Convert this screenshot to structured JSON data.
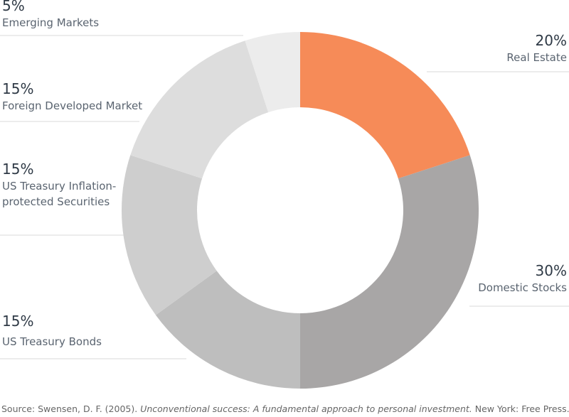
{
  "chart_data": {
    "type": "donut",
    "categories": [
      "Real Estate",
      "Domestic Stocks",
      "US Treasury Bonds",
      "US Treasury Inflation-protected Securities",
      "Foreign Developed Market",
      "Emerging Markets"
    ],
    "values": [
      20,
      30,
      15,
      15,
      15,
      5
    ],
    "value_labels": [
      "20%",
      "30%",
      "15%",
      "15%",
      "15%",
      "5%"
    ],
    "colors": [
      "#f68b58",
      "#a8a6a6",
      "#bebebe",
      "#cecece",
      "#dddddd",
      "#ececec"
    ],
    "source": {
      "prefix": "Source: Swensen, D. F. (2005). ",
      "title": "Unconventional success: A fundamental approach to personal investment.",
      "suffix": " New York: Free Press."
    }
  }
}
